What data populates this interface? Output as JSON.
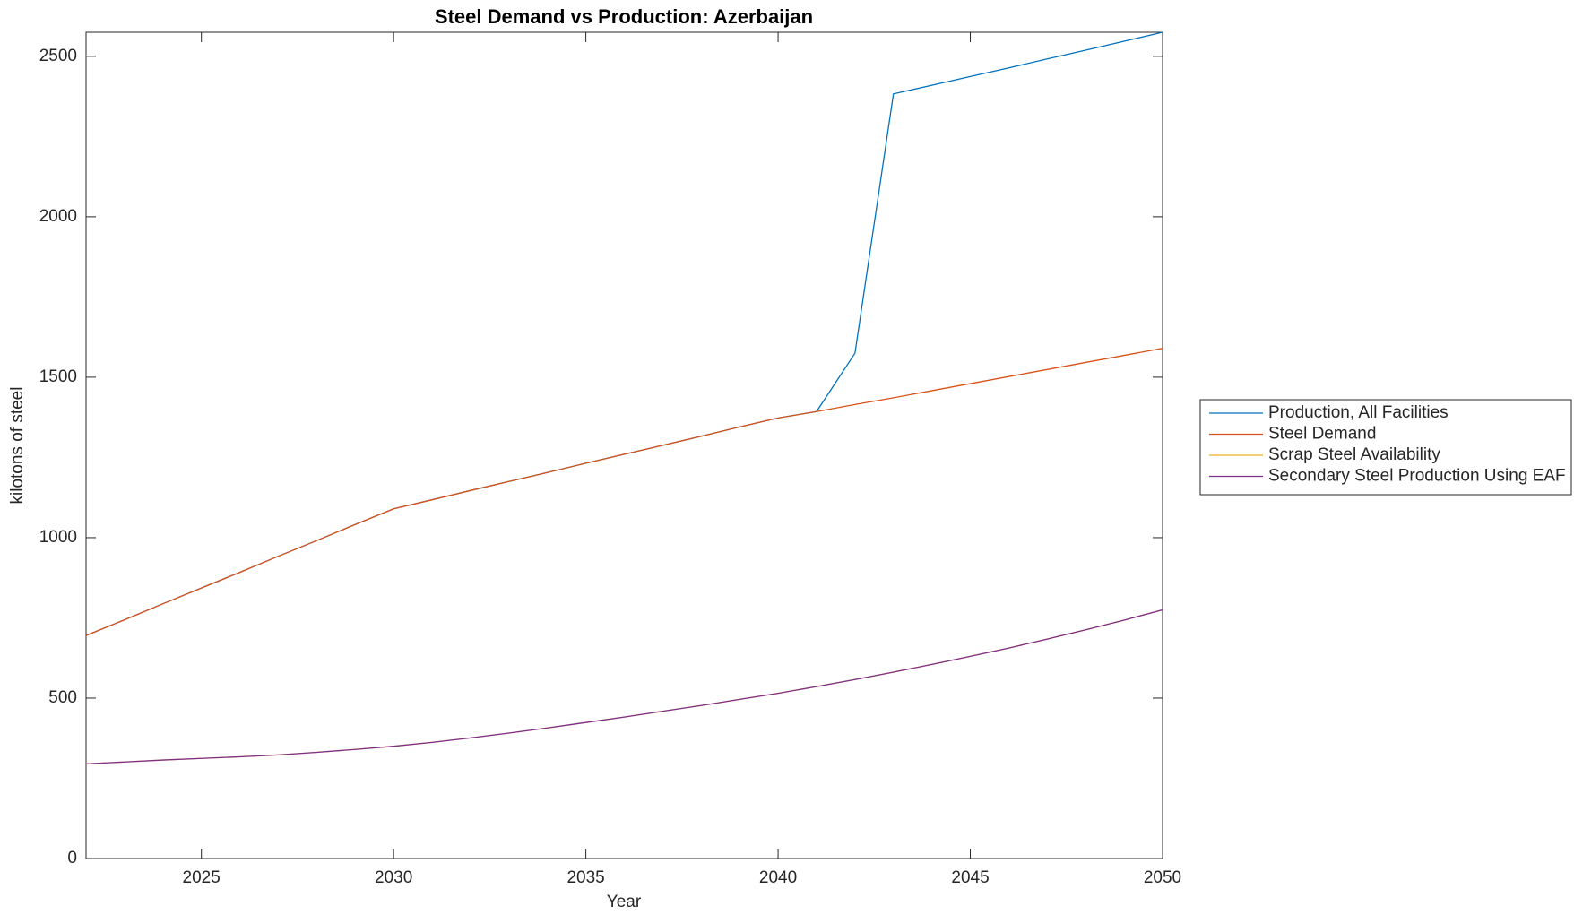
{
  "chart_data": {
    "type": "line",
    "title": "Steel Demand vs Production: Azerbaijan",
    "x_label": "Year",
    "y_label": "kilotons of steel",
    "x": [
      2022,
      2023,
      2024,
      2025,
      2026,
      2027,
      2028,
      2029,
      2030,
      2031,
      2032,
      2033,
      2034,
      2035,
      2036,
      2037,
      2038,
      2039,
      2040,
      2041,
      2042,
      2043,
      2044,
      2045,
      2046,
      2047,
      2048,
      2049,
      2050
    ],
    "series": [
      {
        "name": "Production, All Facilities",
        "color": "#0072BD",
        "values": [
          695,
          744,
          794,
          843,
          892,
          942,
          991,
          1041,
          1090,
          1118,
          1147,
          1175,
          1203,
          1232,
          1260,
          1288,
          1316,
          1345,
          1373,
          1393,
          1575,
          2383,
          2410,
          2437,
          2464,
          2492,
          2519,
          2547,
          2575
        ]
      },
      {
        "name": "Steel Demand",
        "color": "#D95319",
        "values": [
          695,
          744,
          794,
          843,
          892,
          942,
          991,
          1041,
          1090,
          1118,
          1147,
          1175,
          1203,
          1232,
          1260,
          1288,
          1316,
          1345,
          1373,
          1393,
          1415,
          1436,
          1458,
          1480,
          1502,
          1524,
          1546,
          1568,
          1590
        ]
      },
      {
        "name": "Scrap Steel Availability",
        "color": "#EDB120",
        "values": [
          295,
          301,
          307,
          312,
          317,
          323,
          331,
          340,
          350,
          362,
          376,
          391,
          407,
          424,
          441,
          459,
          477,
          496,
          515,
          536,
          558,
          581,
          605,
          630,
          656,
          684,
          713,
          743,
          775
        ]
      },
      {
        "name": "Secondary Steel Production Using EAF",
        "color": "#7E2F8E",
        "values": [
          295,
          301,
          307,
          312,
          317,
          323,
          331,
          340,
          350,
          362,
          376,
          391,
          407,
          424,
          441,
          459,
          477,
          496,
          515,
          536,
          558,
          581,
          605,
          630,
          656,
          684,
          713,
          743,
          775
        ]
      }
    ],
    "xlim": [
      2022,
      2050
    ],
    "ylim": [
      0,
      2575
    ],
    "xticks": [
      2025,
      2030,
      2035,
      2040,
      2045,
      2050
    ],
    "yticks": [
      0,
      500,
      1000,
      1500,
      2000,
      2500
    ],
    "grid": false,
    "legend": "outside-right"
  }
}
